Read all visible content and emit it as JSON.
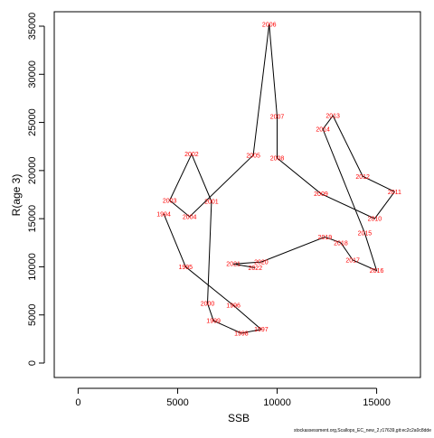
{
  "chart_data": {
    "type": "line",
    "xlabel": "SSB",
    "ylabel": "R(age 3)",
    "xlim": [
      -1200,
      17200
    ],
    "ylim": [
      -1500,
      36500
    ],
    "x_ticks": [
      0,
      5000,
      10000,
      15000
    ],
    "y_ticks": [
      0,
      5000,
      10000,
      15000,
      20000,
      25000,
      30000,
      35000
    ],
    "line_color": "#000000",
    "label_color": "#ff0000",
    "points": [
      {
        "label": "1994",
        "x": 4300,
        "y": 15500
      },
      {
        "label": "1995",
        "x": 5400,
        "y": 10000
      },
      {
        "label": "1996",
        "x": 7800,
        "y": 6000
      },
      {
        "label": "1997",
        "x": 9200,
        "y": 3500
      },
      {
        "label": "1998",
        "x": 8200,
        "y": 3100
      },
      {
        "label": "1999",
        "x": 6800,
        "y": 4400
      },
      {
        "label": "2000",
        "x": 6500,
        "y": 6200
      },
      {
        "label": "2001",
        "x": 6700,
        "y": 16800
      },
      {
        "label": "2002",
        "x": 5700,
        "y": 21700
      },
      {
        "label": "2003",
        "x": 4600,
        "y": 16900
      },
      {
        "label": "2004",
        "x": 5600,
        "y": 15200
      },
      {
        "label": "2005",
        "x": 8800,
        "y": 21600
      },
      {
        "label": "2006",
        "x": 9600,
        "y": 35200
      },
      {
        "label": "2007",
        "x": 10000,
        "y": 25600
      },
      {
        "label": "2008",
        "x": 10000,
        "y": 21300
      },
      {
        "label": "2009",
        "x": 12200,
        "y": 17600
      },
      {
        "label": "2010",
        "x": 14900,
        "y": 15000
      },
      {
        "label": "2011",
        "x": 15900,
        "y": 17800
      },
      {
        "label": "2012",
        "x": 14300,
        "y": 19400
      },
      {
        "label": "2013",
        "x": 12800,
        "y": 25700
      },
      {
        "label": "2014",
        "x": 12300,
        "y": 24300
      },
      {
        "label": "2015",
        "x": 14400,
        "y": 13500
      },
      {
        "label": "2016",
        "x": 15000,
        "y": 9600
      },
      {
        "label": "2017",
        "x": 13800,
        "y": 10700
      },
      {
        "label": "2018",
        "x": 13200,
        "y": 12500
      },
      {
        "label": "2019",
        "x": 12400,
        "y": 13100
      },
      {
        "label": "2020",
        "x": 9200,
        "y": 10500
      },
      {
        "label": "2021",
        "x": 7800,
        "y": 10300
      },
      {
        "label": "2022",
        "x": 8900,
        "y": 9900
      }
    ]
  },
  "footer_note": "stockassessment.org,Scallops_EC_new_2,r17639,git:ec2c2a0c8dde"
}
